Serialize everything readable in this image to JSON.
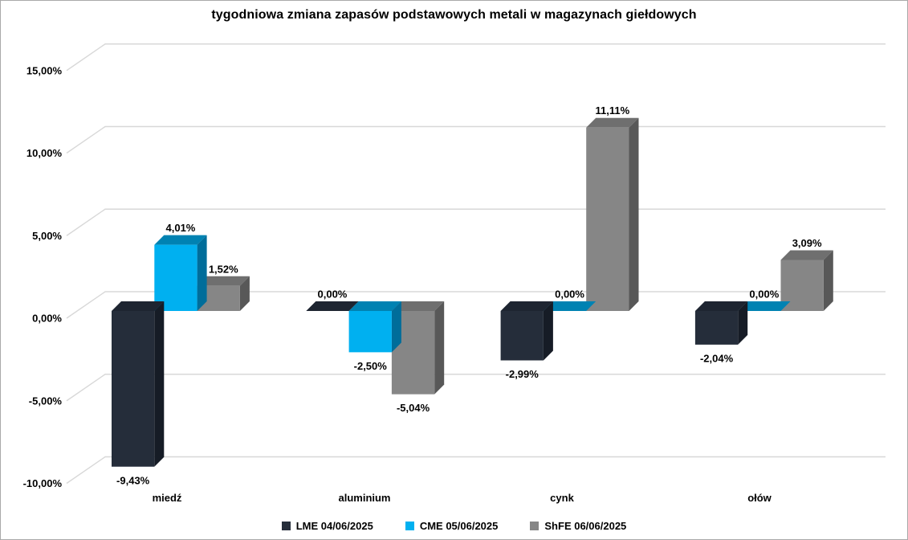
{
  "chart_data": {
    "type": "bar",
    "style": "3d-clustered-column",
    "title": "tygodniowa zmiana zapasów podstawowych metali w magazynach giełdowych",
    "categories": [
      "miedź",
      "aluminium",
      "cynk",
      "ołów"
    ],
    "series": [
      {
        "name": "LME 04/06/2025",
        "values": [
          -9.43,
          0,
          -2.99,
          -2.04
        ],
        "labels": [
          "-9,43%",
          "0,00%",
          "-2,99%",
          "-2,04%"
        ],
        "color": {
          "front": "#252d3a",
          "top": "#1e2531",
          "side": "#161c26"
        }
      },
      {
        "name": "CME 05/06/2025",
        "values": [
          4.01,
          -2.5,
          0,
          0
        ],
        "labels": [
          "4,01%",
          "-2,50%",
          "0,00%",
          "0,00%"
        ],
        "color": {
          "front": "#00b0f0",
          "top": "#0082b2",
          "side": "#006d9a"
        }
      },
      {
        "name": "ShFE 06/06/2025",
        "values": [
          1.52,
          -5.04,
          11.11,
          3.09
        ],
        "labels": [
          "1,52%",
          "-5,04%",
          "11,11%",
          "3,09%"
        ],
        "color": {
          "front": "#868686",
          "top": "#6f6f6f",
          "side": "#585858"
        }
      }
    ],
    "y_axis": {
      "ticks": [
        15,
        10,
        5,
        0,
        -5,
        -10
      ],
      "tick_labels": [
        "15,00%",
        "10,00%",
        "5,00%",
        "0,00%",
        "-5,00%",
        "-10,00%"
      ],
      "min": -10,
      "max": 15,
      "step": 5,
      "grid": true
    },
    "xlabel": "",
    "ylabel": "",
    "legend_position": "bottom",
    "value_format": "percent, comma decimal, 2 dp"
  },
  "colors": {
    "grid": "#d8d8d8",
    "text": "#000000",
    "background": "#ffffff",
    "border": "#a9a9a9"
  }
}
